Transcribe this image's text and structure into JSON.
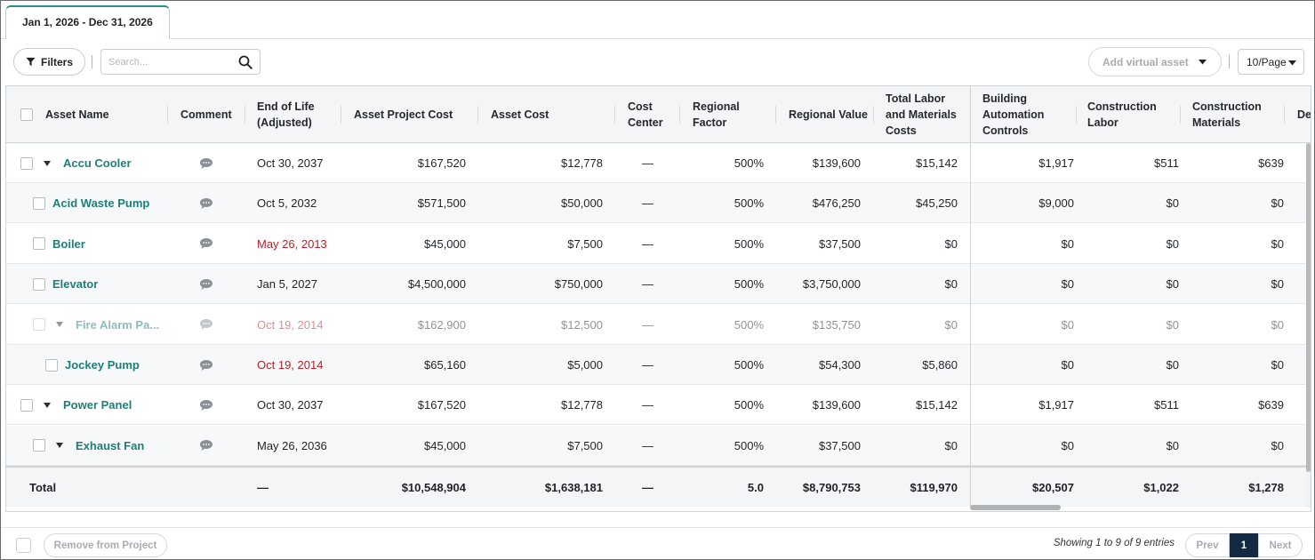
{
  "tab": {
    "label": "Jan 1, 2026 - Dec 31, 2026"
  },
  "toolbar": {
    "filters_label": "Filters",
    "search_placeholder": "Search...",
    "add_virtual_asset_label": "Add virtual asset",
    "per_page_label": "10/Page"
  },
  "table": {
    "columns": [
      "Asset Name",
      "Comment",
      "End of Life (Adjusted)",
      "Asset Project Cost",
      "Asset Cost",
      "Cost Center",
      "Regional Factor",
      "Regional Value",
      "Total Labor and Materials Costs",
      "Building Automation Controls",
      "Construction Labor",
      "Construction Materials",
      "De"
    ],
    "rows": [
      {
        "name": "Accu Cooler",
        "level": 0,
        "expandable": true,
        "muted": false,
        "eol": "Oct 30, 2037",
        "eol_overdue": false,
        "project_cost": "$167,520",
        "asset_cost": "$12,778",
        "cost_center": "—",
        "regional_factor": "500%",
        "regional_value": "$139,600",
        "total_lm": "$15,142",
        "bac": "$1,917",
        "labor": "$511",
        "materials": "$639"
      },
      {
        "name": "Acid Waste Pump",
        "level": 1,
        "expandable": false,
        "muted": false,
        "eol": "Oct 5, 2032",
        "eol_overdue": false,
        "project_cost": "$571,500",
        "asset_cost": "$50,000",
        "cost_center": "—",
        "regional_factor": "500%",
        "regional_value": "$476,250",
        "total_lm": "$45,250",
        "bac": "$9,000",
        "labor": "$0",
        "materials": "$0"
      },
      {
        "name": "Boiler",
        "level": 1,
        "expandable": false,
        "muted": false,
        "eol": "May 26, 2013",
        "eol_overdue": true,
        "project_cost": "$45,000",
        "asset_cost": "$7,500",
        "cost_center": "—",
        "regional_factor": "500%",
        "regional_value": "$37,500",
        "total_lm": "$0",
        "bac": "$0",
        "labor": "$0",
        "materials": "$0"
      },
      {
        "name": "Elevator",
        "level": 1,
        "expandable": false,
        "muted": false,
        "eol": "Jan 5, 2027",
        "eol_overdue": false,
        "project_cost": "$4,500,000",
        "asset_cost": "$750,000",
        "cost_center": "—",
        "regional_factor": "500%",
        "regional_value": "$3,750,000",
        "total_lm": "$0",
        "bac": "$0",
        "labor": "$0",
        "materials": "$0"
      },
      {
        "name": "Fire Alarm Pa...",
        "level": 1,
        "expandable": true,
        "muted": true,
        "eol": "Oct 19, 2014",
        "eol_overdue": true,
        "project_cost": "$162,900",
        "asset_cost": "$12,500",
        "cost_center": "—",
        "regional_factor": "500%",
        "regional_value": "$135,750",
        "total_lm": "$0",
        "bac": "$0",
        "labor": "$0",
        "materials": "$0"
      },
      {
        "name": "Jockey Pump",
        "level": 2,
        "expandable": false,
        "muted": false,
        "eol": "Oct 19, 2014",
        "eol_overdue": true,
        "project_cost": "$65,160",
        "asset_cost": "$5,000",
        "cost_center": "—",
        "regional_factor": "500%",
        "regional_value": "$54,300",
        "total_lm": "$5,860",
        "bac": "$0",
        "labor": "$0",
        "materials": "$0"
      },
      {
        "name": "Power Panel",
        "level": 0,
        "expandable": true,
        "muted": false,
        "eol": "Oct 30, 2037",
        "eol_overdue": false,
        "project_cost": "$167,520",
        "asset_cost": "$12,778",
        "cost_center": "—",
        "regional_factor": "500%",
        "regional_value": "$139,600",
        "total_lm": "$15,142",
        "bac": "$1,917",
        "labor": "$511",
        "materials": "$639"
      },
      {
        "name": "Exhaust Fan",
        "level": 1,
        "expandable": true,
        "muted": false,
        "eol": "May 26, 2036",
        "eol_overdue": false,
        "project_cost": "$45,000",
        "asset_cost": "$7,500",
        "cost_center": "—",
        "regional_factor": "500%",
        "regional_value": "$37,500",
        "total_lm": "$0",
        "bac": "$0",
        "labor": "$0",
        "materials": "$0"
      }
    ],
    "total": {
      "label": "Total",
      "eol": "—",
      "project_cost": "$10,548,904",
      "asset_cost": "$1,638,181",
      "cost_center": "—",
      "regional_factor": "5.0",
      "regional_value": "$8,790,753",
      "total_lm": "$119,970",
      "bac": "$20,507",
      "labor": "$1,022",
      "materials": "$1,278"
    }
  },
  "footer": {
    "remove_label": "Remove from Project",
    "showing_text": "Showing 1 to 9 of 9 entries",
    "prev_label": "Prev",
    "current_page": "1",
    "next_label": "Next"
  },
  "colors": {
    "accent_teal": "#1f7e78",
    "overdue_red": "#b4232a",
    "pager_active": "#132a42"
  },
  "icons": [
    "filter-icon",
    "search-icon",
    "caret-down-icon",
    "comment-icon",
    "expand-triangle-icon",
    "checkbox"
  ]
}
